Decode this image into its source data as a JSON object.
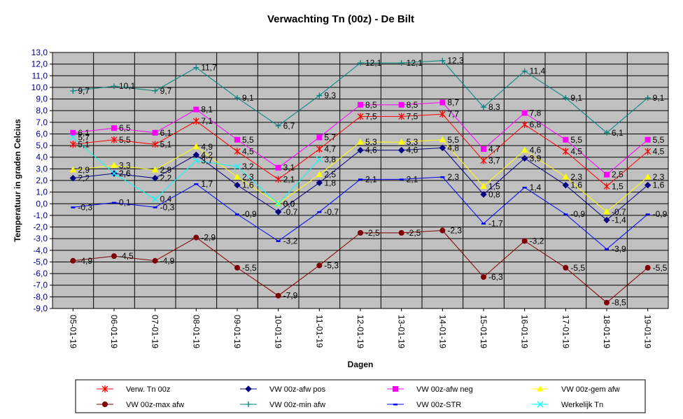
{
  "chart_data": {
    "type": "line",
    "title": "Verwachting Tn (00z) - De Bilt",
    "xlabel": "Dagen",
    "ylabel": "Temperatuur in graden Celcius",
    "ylim": [
      -9,
      13
    ],
    "ystep": 1,
    "grid": true,
    "legend_position": "bottom",
    "plot_background": "#c0c0c0",
    "categories": [
      "05-01-19",
      "06-01-19",
      "07-01-19",
      "08-01-19",
      "09-01-19",
      "10-01-19",
      "11-01-19",
      "12-01-19",
      "13-01-19",
      "14-01-19",
      "15-01-19",
      "16-01-19",
      "17-01-19",
      "18-01-19",
      "19-01-19"
    ],
    "series": [
      {
        "name": "Verw. Tn 00z",
        "color": "#ff0000",
        "marker": "star",
        "values": [
          5.1,
          5.5,
          5.1,
          7.1,
          4.5,
          2.1,
          4.7,
          7.5,
          7.5,
          7.7,
          3.7,
          6.8,
          4.5,
          1.5,
          4.5
        ]
      },
      {
        "name": "VW 00z-afw pos",
        "color": "#000080",
        "marker": "diamond",
        "values": [
          2.2,
          2.6,
          2.2,
          4.2,
          1.6,
          -0.7,
          1.8,
          4.6,
          4.6,
          4.8,
          0.8,
          3.9,
          1.6,
          -1.4,
          1.6
        ]
      },
      {
        "name": "VW 00z-afw neg",
        "color": "#ff00ff",
        "marker": "square",
        "values": [
          6.1,
          6.5,
          6.1,
          8.1,
          5.5,
          3.1,
          5.7,
          8.5,
          8.5,
          8.7,
          4.7,
          7.8,
          5.5,
          2.5,
          5.5
        ]
      },
      {
        "name": "VW 00z-gem afw",
        "color": "#ffff00",
        "marker": "triangle",
        "values": [
          2.9,
          3.3,
          2.9,
          4.9,
          2.3,
          0.0,
          2.5,
          5.3,
          5.3,
          5.5,
          1.5,
          4.6,
          2.3,
          -0.7,
          2.3
        ]
      },
      {
        "name": "VW 00z-max afw",
        "color": "#800000",
        "marker": "circle",
        "values": [
          -4.9,
          -4.5,
          -4.9,
          -2.9,
          -5.5,
          -7.9,
          -5.3,
          -2.5,
          -2.5,
          -2.3,
          -6.3,
          -3.2,
          -5.5,
          -8.5,
          -5.5
        ]
      },
      {
        "name": "VW 00z-min afw",
        "color": "#008080",
        "marker": "plus",
        "values": [
          9.7,
          10.1,
          9.7,
          11.7,
          9.1,
          6.7,
          9.3,
          12.1,
          12.1,
          12.3,
          8.3,
          11.4,
          9.1,
          6.1,
          9.1
        ]
      },
      {
        "name": "VW 00z-STR",
        "color": "#0000ff",
        "marker": "dash",
        "values": [
          -0.3,
          0.1,
          -0.3,
          1.7,
          -0.9,
          -3.2,
          -0.7,
          2.1,
          2.1,
          2.3,
          -1.7,
          1.4,
          -0.9,
          -3.9,
          -0.9
        ]
      },
      {
        "name": "Werkelijk Tn",
        "color": "#00ffff",
        "marker": "x",
        "values": [
          5.7,
          2.6,
          0.4,
          3.7,
          3.2,
          0.0,
          3.8,
          null,
          null,
          null,
          null,
          null,
          null,
          null,
          null
        ]
      }
    ],
    "label_text": [
      [
        "5,1",
        "5,5",
        "5,1",
        "7,1",
        "4,5",
        "2,1",
        "4,7",
        "7,5",
        "7,5",
        "7,7",
        "3,7",
        "6,8",
        "4,5",
        "1,5",
        "4,5"
      ],
      [
        "2,2",
        "2,6",
        "2,2",
        "4,2",
        "1,6",
        "-0,7",
        "1,8",
        "4,6",
        "4,6",
        "4,8",
        "0,8",
        "3,9",
        "1,6",
        "-1,4",
        "1,6"
      ],
      [
        "6,1",
        "6,5",
        "6,1",
        "8,1",
        "5,5",
        "3,1",
        "5,7",
        "8,5",
        "8,5",
        "8,7",
        "4,7",
        "7,8",
        "5,5",
        "2,5",
        "5,5"
      ],
      [
        "2,9",
        "3,3",
        "2,9",
        "4,9",
        "2,3",
        "0,0",
        "2,5",
        "5,3",
        "5,3",
        "5,5",
        "1,5",
        "4,6",
        "2,3",
        "-0,7",
        "2,3"
      ],
      [
        "-4,9",
        "-4,5",
        "-4,9",
        "-2,9",
        "-5,5",
        "-7,9",
        "-5,3",
        "-2,5",
        "-2,5",
        "-2,3",
        "-6,3",
        "-3,2",
        "-5,5",
        "-8,5",
        "-5,5"
      ],
      [
        "9,7",
        "10,1",
        "9,7",
        "11,7",
        "9,1",
        "6,7",
        "9,3",
        "12,1",
        "12,1",
        "12,3",
        "8,3",
        "11,4",
        "9,1",
        "6,1",
        "9,1"
      ],
      [
        "-0,3",
        "0,1",
        "-0,3",
        "1,7",
        "-0,9",
        "-3,2",
        "-0,7",
        "2,1",
        "2,1",
        "2,3",
        "-1,7",
        "1,4",
        "-0,9",
        "-3,9",
        "-0,9"
      ],
      [
        "5,7",
        "2,6",
        "0,4",
        "3,7",
        "3,2",
        "0,0",
        "3,8",
        null,
        null,
        null,
        null,
        null,
        null,
        null,
        null
      ]
    ],
    "ytick_labels": [
      "-9,0",
      "-8,0",
      "-7,0",
      "-6,0",
      "-5,0",
      "-4,0",
      "-3,0",
      "-2,0",
      "-1,0",
      "0,0",
      "1,0",
      "2,0",
      "3,0",
      "4,0",
      "5,0",
      "6,0",
      "7,0",
      "8,0",
      "9,0",
      "10,0",
      "11,0",
      "12,0",
      "13,0"
    ]
  }
}
